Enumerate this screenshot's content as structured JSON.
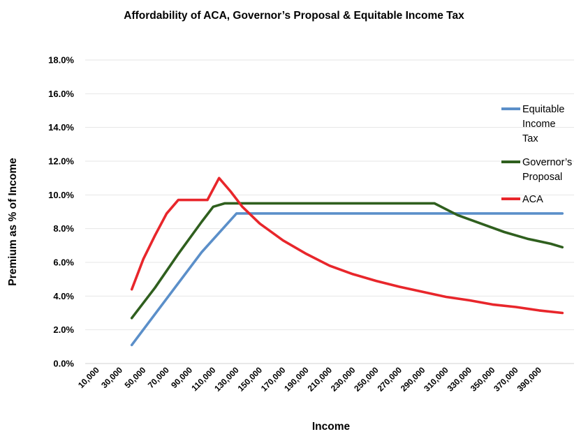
{
  "chart_data": {
    "type": "line",
    "title": "Affordability of ACA, Governor’s Proposal & Equitable Income Tax",
    "xlabel": "Income",
    "ylabel": "Premium as % of Income",
    "ylim": [
      0,
      18
    ],
    "y_tick_labels": [
      "0.0%",
      "2.0%",
      "4.0%",
      "6.0%",
      "8.0%",
      "10.0%",
      "12.0%",
      "14.0%",
      "16.0%",
      "18.0%"
    ],
    "x_tick_labels": [
      "10,000",
      "30,000",
      "50,000",
      "70,000",
      "90,000",
      "110,000",
      "130,000",
      "150,000",
      "170,000",
      "190,000",
      "210,000",
      "230,000",
      "250,000",
      "270,000",
      "290,000",
      "310,000",
      "330,000",
      "350,000",
      "370,000",
      "390,000"
    ],
    "grid": true,
    "legend_position": "right",
    "series": [
      {
        "name": "Equitable Income Tax",
        "legend_lines": [
          "Equitable",
          "Income",
          "Tax"
        ],
        "color": "#5B8FC9",
        "points": [
          [
            40000,
            1.1
          ],
          [
            100000,
            6.6
          ],
          [
            130000,
            8.9
          ],
          [
            410000,
            8.9
          ]
        ]
      },
      {
        "name": "Governor’s Proposal",
        "legend_lines": [
          "Governor’s",
          "Proposal"
        ],
        "color": "#2F5F1E",
        "points": [
          [
            40000,
            2.7
          ],
          [
            60000,
            4.5
          ],
          [
            80000,
            6.5
          ],
          [
            100000,
            8.4
          ],
          [
            110000,
            9.3
          ],
          [
            120000,
            9.5
          ],
          [
            300000,
            9.5
          ],
          [
            320000,
            8.8
          ],
          [
            340000,
            8.3
          ],
          [
            360000,
            7.8
          ],
          [
            380000,
            7.4
          ],
          [
            400000,
            7.1
          ],
          [
            410000,
            6.9
          ]
        ]
      },
      {
        "name": "ACA",
        "legend_lines": [
          "ACA"
        ],
        "color": "#E8262B",
        "points": [
          [
            40000,
            4.4
          ],
          [
            50000,
            6.2
          ],
          [
            60000,
            7.6
          ],
          [
            70000,
            8.9
          ],
          [
            80000,
            9.7
          ],
          [
            90000,
            9.7
          ],
          [
            105000,
            9.7
          ],
          [
            115000,
            11.0
          ],
          [
            125000,
            10.2
          ],
          [
            135000,
            9.3
          ],
          [
            150000,
            8.3
          ],
          [
            170000,
            7.3
          ],
          [
            190000,
            6.5
          ],
          [
            210000,
            5.8
          ],
          [
            230000,
            5.3
          ],
          [
            250000,
            4.9
          ],
          [
            270000,
            4.55
          ],
          [
            290000,
            4.25
          ],
          [
            310000,
            3.95
          ],
          [
            330000,
            3.75
          ],
          [
            350000,
            3.5
          ],
          [
            370000,
            3.35
          ],
          [
            390000,
            3.15
          ],
          [
            410000,
            3.0
          ]
        ]
      }
    ]
  }
}
